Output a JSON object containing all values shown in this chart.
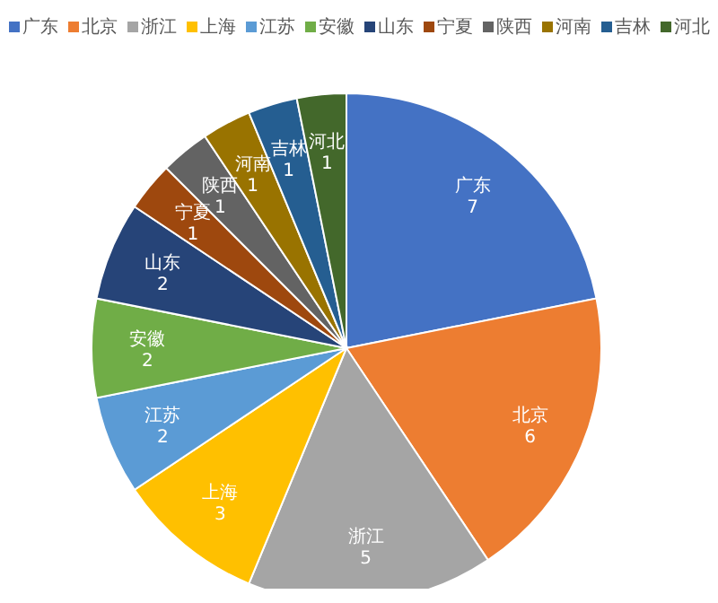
{
  "chart_data": {
    "type": "pie",
    "categories": [
      "广东",
      "北京",
      "浙江",
      "上海",
      "江苏",
      "安徽",
      "山东",
      "宁夏",
      "陕西",
      "河南",
      "吉林",
      "河北"
    ],
    "values": [
      7,
      6,
      5,
      3,
      2,
      2,
      2,
      1,
      1,
      1,
      1,
      1
    ],
    "colors": [
      "#4472c4",
      "#ed7d31",
      "#a5a5a5",
      "#ffc000",
      "#5b9bd5",
      "#70ad47",
      "#264478",
      "#9e480e",
      "#636363",
      "#997300",
      "#255e91",
      "#43682b"
    ],
    "data_labels": true,
    "legend": "top"
  }
}
